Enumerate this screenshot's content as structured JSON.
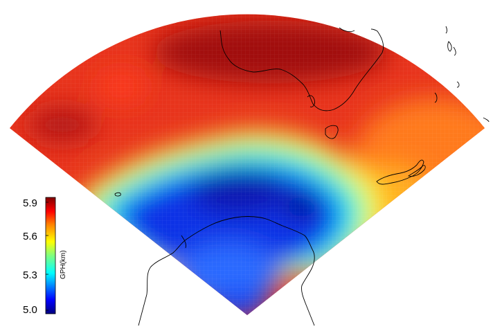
{
  "colorbar": {
    "label": "GPH(km)",
    "ticks": [
      "5.9",
      "5.6",
      "5.3",
      "5.0"
    ],
    "range": [
      5.0,
      5.9
    ],
    "colormap": [
      "#00007f",
      "#0000ff",
      "#007fff",
      "#00ffff",
      "#7fff7f",
      "#ffff00",
      "#ff7f00",
      "#ff0000",
      "#7f0000"
    ]
  },
  "map": {
    "projection": "polar-sector",
    "field": "geopotential height",
    "colors": {
      "high": "#e62a14",
      "mid": "#ffff33",
      "low": "#1e32e0",
      "coast": "#000000"
    }
  }
}
